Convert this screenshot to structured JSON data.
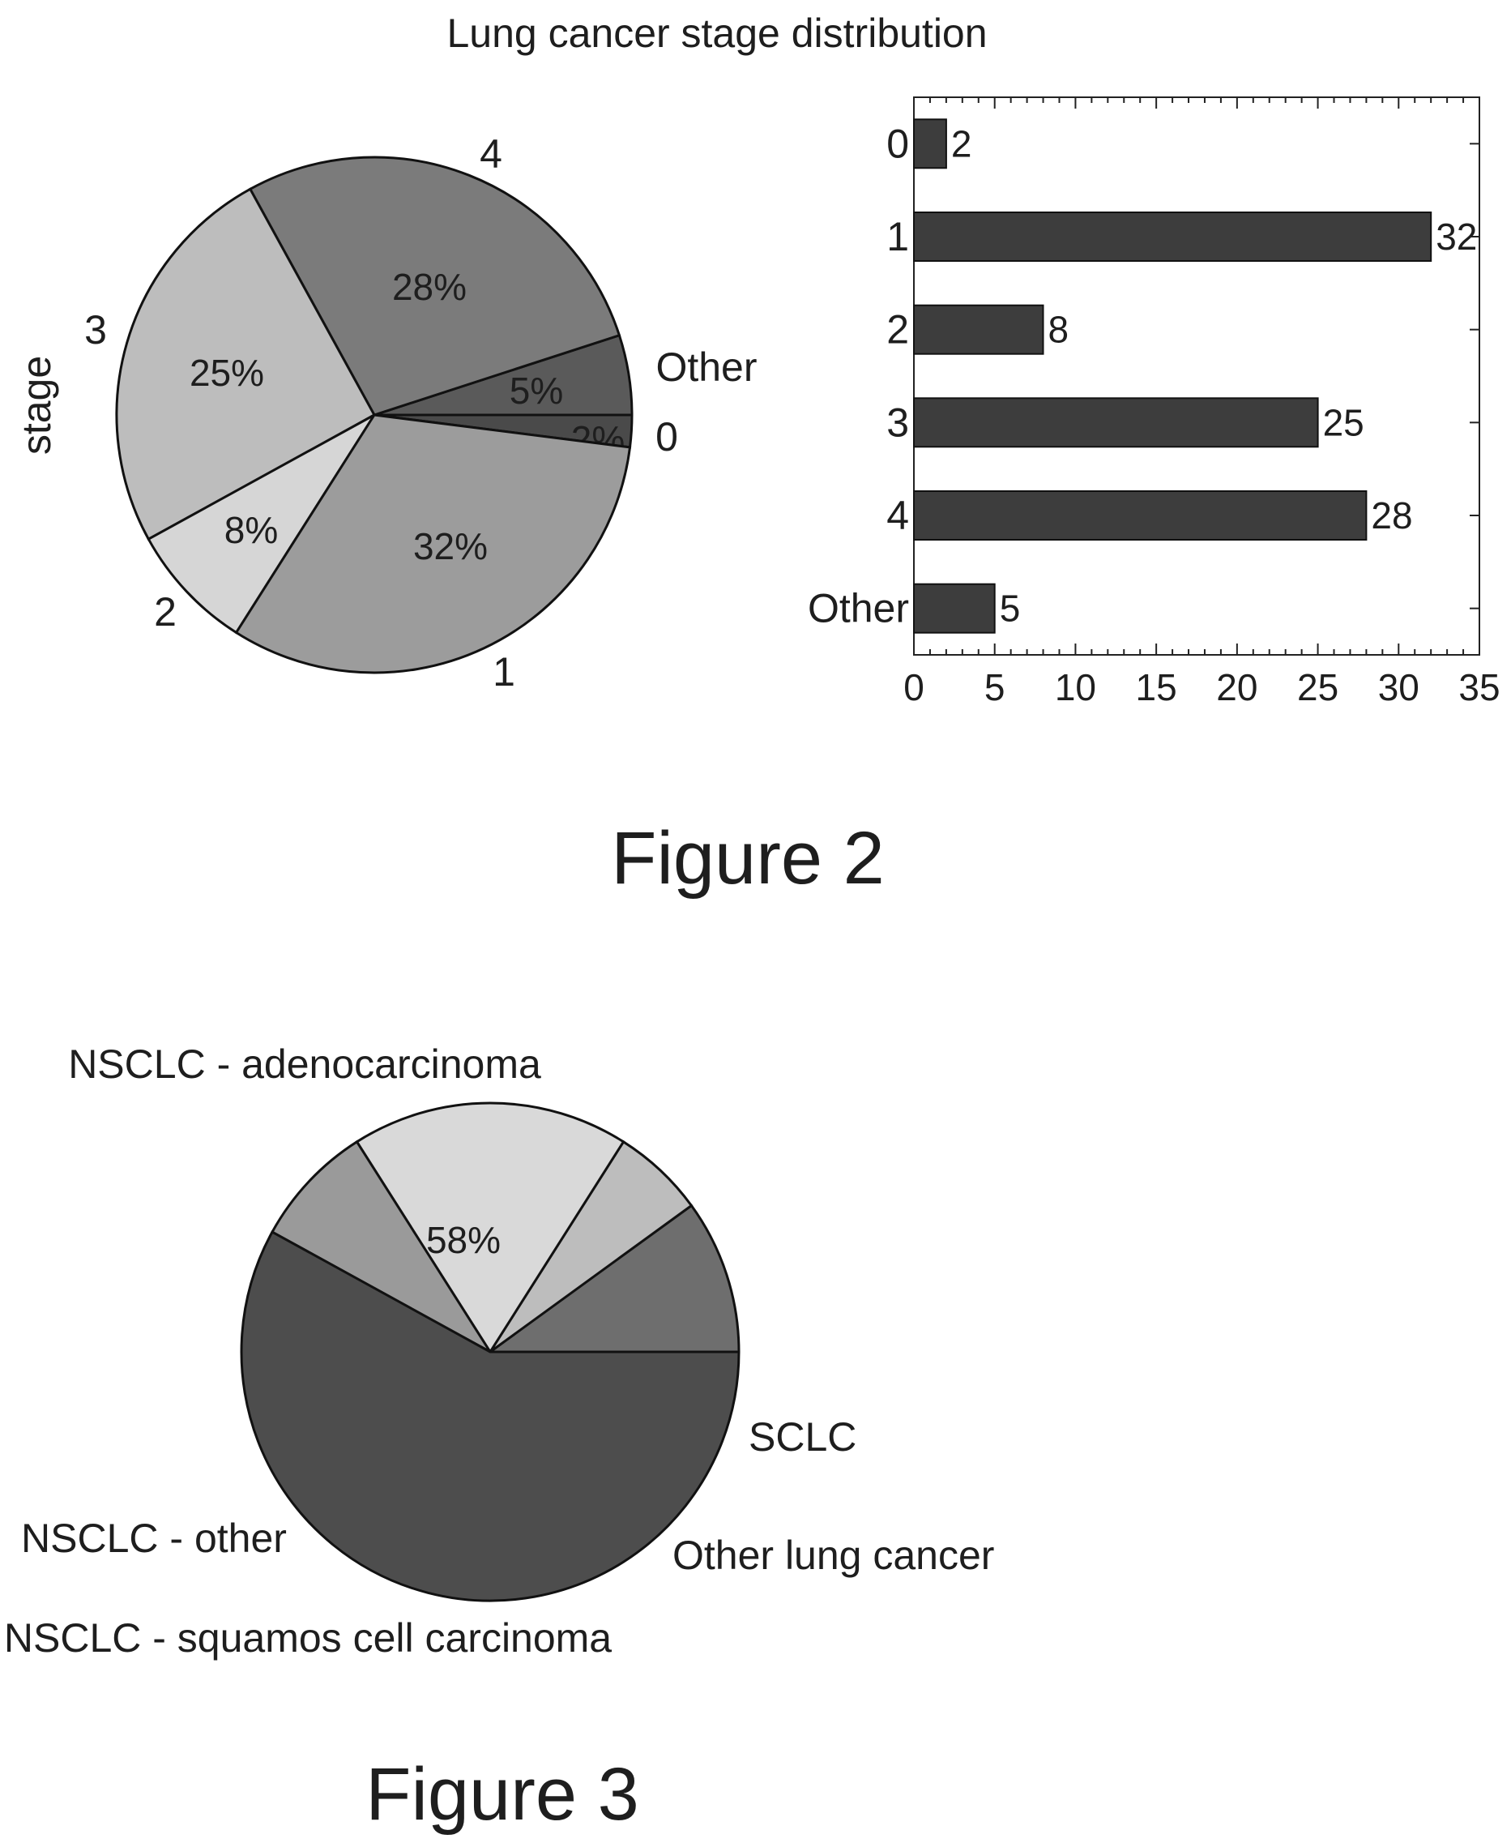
{
  "figure2": {
    "title": "Lung cancer stage distribution",
    "caption": "Figure 2"
  },
  "figure3": {
    "caption": "Figure 3"
  },
  "chart_data": [
    {
      "type": "pie",
      "ylabel": "stage",
      "slices": [
        {
          "label": "0",
          "value": 2,
          "pct_label": "2%",
          "color": "#4a4a4a"
        },
        {
          "label": "Other",
          "value": 5,
          "pct_label": "5%",
          "color": "#5a5a5a"
        },
        {
          "label": "4",
          "value": 28,
          "pct_label": "28%",
          "color": "#7b7b7b"
        },
        {
          "label": "3",
          "value": 25,
          "pct_label": "25%",
          "color": "#bdbdbd"
        },
        {
          "label": "2",
          "value": 8,
          "pct_label": "8%",
          "color": "#d6d6d6"
        },
        {
          "label": "1",
          "value": 32,
          "pct_label": "32%",
          "color": "#9c9c9c"
        }
      ]
    },
    {
      "type": "bar",
      "orientation": "horizontal",
      "categories": [
        "0",
        "1",
        "2",
        "3",
        "4",
        "Other"
      ],
      "values": [
        2,
        32,
        8,
        25,
        28,
        5
      ],
      "value_labels": [
        "2",
        "32",
        "8",
        "25",
        "28",
        "5"
      ],
      "xlim": [
        0,
        35
      ],
      "xticks": [
        "0",
        "5",
        "10",
        "15",
        "20",
        "25",
        "30",
        "35"
      ],
      "bar_color": "#3d3d3d"
    },
    {
      "type": "pie",
      "slices": [
        {
          "label": "SCLC",
          "value": 10,
          "pct_label": "10%",
          "color": "#6e6e6e"
        },
        {
          "label": "Other lung cancer",
          "value": 6,
          "pct_label": "6%",
          "color": "#bdbdbd"
        },
        {
          "label": "NSCLC - squamos cell carcinoma",
          "value": 18,
          "pct_label": "18%",
          "color": "#d9d9d9"
        },
        {
          "label": "NSCLC - other",
          "value": 8,
          "pct_label": "8%",
          "color": "#9a9a9a"
        },
        {
          "label": "NSCLC - adenocarcinoma",
          "value": 58,
          "pct_label": "58%",
          "color": "#4d4d4d"
        }
      ]
    }
  ]
}
